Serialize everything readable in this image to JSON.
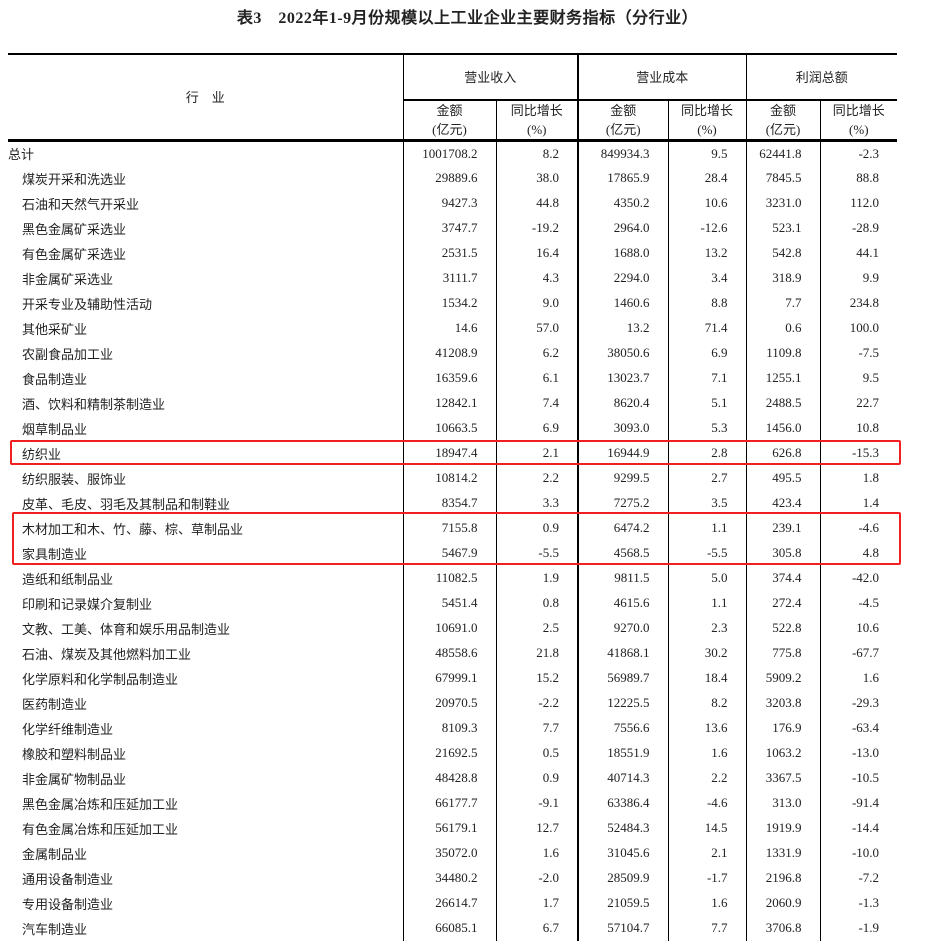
{
  "title": "表3　2022年1-9月份规模以上工业企业主要财务指标（分行业）",
  "header": {
    "industry": "行　业",
    "groups": [
      "营业收入",
      "营业成本",
      "利润总额"
    ],
    "amount": "金额",
    "amount_unit": "(亿元)",
    "growth": "同比增长",
    "growth_unit": "(%)"
  },
  "highlight_color": "#f02020",
  "rows": [
    [
      "总计",
      "1001708.2",
      "8.2",
      "849934.3",
      "9.5",
      "62441.8",
      "-2.3"
    ],
    [
      "煤炭开采和洗选业",
      "29889.6",
      "38.0",
      "17865.9",
      "28.4",
      "7845.5",
      "88.8"
    ],
    [
      "石油和天然气开采业",
      "9427.3",
      "44.8",
      "4350.2",
      "10.6",
      "3231.0",
      "112.0"
    ],
    [
      "黑色金属矿采选业",
      "3747.7",
      "-19.2",
      "2964.0",
      "-12.6",
      "523.1",
      "-28.9"
    ],
    [
      "有色金属矿采选业",
      "2531.5",
      "16.4",
      "1688.0",
      "13.2",
      "542.8",
      "44.1"
    ],
    [
      "非金属矿采选业",
      "3111.7",
      "4.3",
      "2294.0",
      "3.4",
      "318.9",
      "9.9"
    ],
    [
      "开采专业及辅助性活动",
      "1534.2",
      "9.0",
      "1460.6",
      "8.8",
      "7.7",
      "234.8"
    ],
    [
      "其他采矿业",
      "14.6",
      "57.0",
      "13.2",
      "71.4",
      "0.6",
      "100.0"
    ],
    [
      "农副食品加工业",
      "41208.9",
      "6.2",
      "38050.6",
      "6.9",
      "1109.8",
      "-7.5"
    ],
    [
      "食品制造业",
      "16359.6",
      "6.1",
      "13023.7",
      "7.1",
      "1255.1",
      "9.5"
    ],
    [
      "酒、饮料和精制茶制造业",
      "12842.1",
      "7.4",
      "8620.4",
      "5.1",
      "2488.5",
      "22.7"
    ],
    [
      "烟草制品业",
      "10663.5",
      "6.9",
      "3093.0",
      "5.3",
      "1456.0",
      "10.8"
    ],
    [
      "纺织业",
      "18947.4",
      "2.1",
      "16944.9",
      "2.8",
      "626.8",
      "-15.3"
    ],
    [
      "纺织服装、服饰业",
      "10814.2",
      "2.2",
      "9299.5",
      "2.7",
      "495.5",
      "1.8"
    ],
    [
      "皮革、毛皮、羽毛及其制品和制鞋业",
      "8354.7",
      "3.3",
      "7275.2",
      "3.5",
      "423.4",
      "1.4"
    ],
    [
      "木材加工和木、竹、藤、棕、草制品业",
      "7155.8",
      "0.9",
      "6474.2",
      "1.1",
      "239.1",
      "-4.6"
    ],
    [
      "家具制造业",
      "5467.9",
      "-5.5",
      "4568.5",
      "-5.5",
      "305.8",
      "4.8"
    ],
    [
      "造纸和纸制品业",
      "11082.5",
      "1.9",
      "9811.5",
      "5.0",
      "374.4",
      "-42.0"
    ],
    [
      "印刷和记录媒介复制业",
      "5451.4",
      "0.8",
      "4615.6",
      "1.1",
      "272.4",
      "-4.5"
    ],
    [
      "文教、工美、体育和娱乐用品制造业",
      "10691.0",
      "2.5",
      "9270.0",
      "2.3",
      "522.8",
      "10.6"
    ],
    [
      "石油、煤炭及其他燃料加工业",
      "48558.6",
      "21.8",
      "41868.1",
      "30.2",
      "775.8",
      "-67.7"
    ],
    [
      "化学原料和化学制品制造业",
      "67999.1",
      "15.2",
      "56989.7",
      "18.4",
      "5909.2",
      "1.6"
    ],
    [
      "医药制造业",
      "20970.5",
      "-2.2",
      "12225.5",
      "8.2",
      "3203.8",
      "-29.3"
    ],
    [
      "化学纤维制造业",
      "8109.3",
      "7.7",
      "7556.6",
      "13.6",
      "176.9",
      "-63.4"
    ],
    [
      "橡胶和塑料制品业",
      "21692.5",
      "0.5",
      "18551.9",
      "1.6",
      "1063.2",
      "-13.0"
    ],
    [
      "非金属矿物制品业",
      "48428.8",
      "0.9",
      "40714.3",
      "2.2",
      "3367.5",
      "-10.5"
    ],
    [
      "黑色金属冶炼和压延加工业",
      "66177.7",
      "-9.1",
      "63386.4",
      "-4.6",
      "313.0",
      "-91.4"
    ],
    [
      "有色金属冶炼和压延加工业",
      "56179.1",
      "12.7",
      "52484.3",
      "14.5",
      "1919.9",
      "-14.4"
    ],
    [
      "金属制品业",
      "35072.0",
      "1.6",
      "31045.6",
      "2.1",
      "1331.9",
      "-10.0"
    ],
    [
      "通用设备制造业",
      "34480.2",
      "-2.0",
      "28509.9",
      "-1.7",
      "2196.8",
      "-7.2"
    ],
    [
      "专用设备制造业",
      "26614.7",
      "1.7",
      "21059.5",
      "1.6",
      "2060.9",
      "-1.3"
    ],
    [
      "汽车制造业",
      "66085.1",
      "6.7",
      "57104.7",
      "7.7",
      "3706.8",
      "-1.9"
    ]
  ]
}
